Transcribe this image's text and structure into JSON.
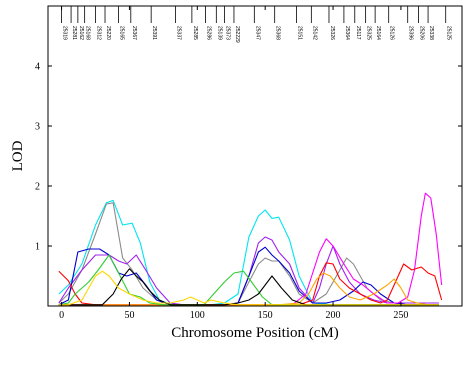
{
  "chart_data": {
    "type": "line",
    "title": "",
    "xlabel": "Chromosome Position (cM)",
    "ylabel": "LOD",
    "xlim": [
      -10,
      295
    ],
    "ylim": [
      0,
      5
    ],
    "xticks": [
      0,
      50,
      100,
      150,
      200,
      250
    ],
    "yticks": [
      1,
      2,
      3,
      4
    ],
    "grid": false,
    "legend": "none",
    "markers": [
      {
        "name": "25319",
        "pos": 0
      },
      {
        "name": "25281",
        "pos": 7
      },
      {
        "name": "25162",
        "pos": 12
      },
      {
        "name": "25168",
        "pos": 17
      },
      {
        "name": "25312",
        "pos": 25
      },
      {
        "name": "25220",
        "pos": 32
      },
      {
        "name": "25165",
        "pos": 42
      },
      {
        "name": "25367",
        "pos": 51
      },
      {
        "name": "25391",
        "pos": 66
      },
      {
        "name": "25337",
        "pos": 84
      },
      {
        "name": "25285",
        "pos": 96
      },
      {
        "name": "25286",
        "pos": 106
      },
      {
        "name": "25139",
        "pos": 114
      },
      {
        "name": "25373",
        "pos": 120
      },
      {
        "name": "252229",
        "pos": 127
      },
      {
        "name": "25347",
        "pos": 142
      },
      {
        "name": "25368",
        "pos": 157
      },
      {
        "name": "25151",
        "pos": 173
      },
      {
        "name": "25142",
        "pos": 184
      },
      {
        "name": "25326",
        "pos": 197
      },
      {
        "name": "25364",
        "pos": 208
      },
      {
        "name": "25117",
        "pos": 216
      },
      {
        "name": "25325",
        "pos": 224
      },
      {
        "name": "25164",
        "pos": 231
      },
      {
        "name": "25126",
        "pos": 241
      },
      {
        "name": "25396",
        "pos": 255
      },
      {
        "name": "25206",
        "pos": 263
      },
      {
        "name": "25338",
        "pos": 270
      },
      {
        "name": "25125",
        "pos": 283
      }
    ],
    "series": [
      {
        "color": "#00e5ee",
        "x": [
          -2,
          5,
          15,
          25,
          33,
          38,
          45,
          52,
          58,
          65,
          72,
          80,
          90,
          100,
          110,
          120,
          130,
          138,
          145,
          150,
          155,
          160,
          168,
          175,
          185,
          200,
          220,
          240,
          260,
          278
        ],
        "y": [
          0.2,
          0.35,
          0.7,
          1.35,
          1.72,
          1.76,
          1.35,
          1.38,
          1.05,
          0.4,
          0.1,
          0.03,
          0.02,
          0.02,
          0.02,
          0.05,
          0.2,
          1.15,
          1.5,
          1.6,
          1.46,
          1.48,
          1.1,
          0.5,
          0.05,
          0.02,
          0.02,
          0.02,
          0.02,
          0.02
        ]
      },
      {
        "color": "#8b8b8b",
        "x": [
          -2,
          5,
          15,
          25,
          33,
          38,
          45,
          52,
          60,
          70,
          80,
          90,
          100,
          110,
          120,
          130,
          138,
          145,
          150,
          155,
          160,
          168,
          175,
          185,
          195,
          205,
          210,
          215,
          225,
          235,
          245,
          255,
          265,
          278
        ],
        "y": [
          0.05,
          0.2,
          0.6,
          1.2,
          1.7,
          1.72,
          0.8,
          0.6,
          0.3,
          0.1,
          0.02,
          0.02,
          0.02,
          0.02,
          0.02,
          0.05,
          0.4,
          0.7,
          0.8,
          0.75,
          0.75,
          0.5,
          0.2,
          0.05,
          0.2,
          0.6,
          0.8,
          0.7,
          0.3,
          0.1,
          0.05,
          0.02,
          0.02,
          0.02
        ]
      },
      {
        "color": "#a020f0",
        "x": [
          -2,
          5,
          15,
          25,
          35,
          42,
          48,
          55,
          62,
          70,
          80,
          90,
          100,
          110,
          120,
          130,
          138,
          145,
          150,
          155,
          160,
          168,
          175,
          185,
          190,
          195,
          200,
          205,
          212,
          220,
          230,
          240,
          250,
          260,
          270,
          278
        ],
        "y": [
          0.05,
          0.3,
          0.6,
          0.85,
          0.85,
          0.75,
          0.7,
          0.85,
          0.6,
          0.3,
          0.05,
          0.02,
          0.02,
          0.02,
          0.02,
          0.05,
          0.5,
          1.05,
          1.15,
          1.1,
          0.9,
          0.7,
          0.3,
          0.05,
          0.3,
          0.7,
          1.0,
          0.7,
          0.4,
          0.2,
          0.1,
          0.05,
          0.05,
          0.05,
          0.05,
          0.05
        ]
      },
      {
        "color": "#0000cd",
        "x": [
          -2,
          5,
          12,
          20,
          28,
          35,
          42,
          48,
          55,
          62,
          70,
          80,
          90,
          100,
          110,
          120,
          130,
          138,
          145,
          150,
          155,
          160,
          168,
          175,
          185,
          195,
          205,
          215,
          222,
          228,
          235,
          245,
          255,
          270,
          278
        ],
        "y": [
          0.02,
          0.1,
          0.9,
          0.95,
          0.95,
          0.85,
          0.55,
          0.5,
          0.55,
          0.35,
          0.1,
          0.02,
          0.02,
          0.02,
          0.02,
          0.02,
          0.05,
          0.5,
          0.9,
          0.98,
          0.85,
          0.75,
          0.55,
          0.25,
          0.05,
          0.05,
          0.1,
          0.25,
          0.4,
          0.35,
          0.2,
          0.05,
          0.02,
          0.02,
          0.02
        ]
      },
      {
        "color": "#ff00ff",
        "x": [
          -2,
          10,
          20,
          30,
          40,
          50,
          60,
          70,
          80,
          90,
          100,
          110,
          120,
          130,
          140,
          150,
          160,
          170,
          180,
          185,
          190,
          195,
          200,
          208,
          215,
          222,
          230,
          240,
          248,
          255,
          260,
          265,
          268,
          272,
          276,
          280
        ],
        "y": [
          0.02,
          0.02,
          0.02,
          0.02,
          0.02,
          0.02,
          0.02,
          0.02,
          0.02,
          0.02,
          0.02,
          0.02,
          0.02,
          0.02,
          0.02,
          0.02,
          0.02,
          0.02,
          0.2,
          0.55,
          0.9,
          1.12,
          1.0,
          0.7,
          0.45,
          0.35,
          0.2,
          0.05,
          0.05,
          0.15,
          0.6,
          1.5,
          1.88,
          1.8,
          1.2,
          0.35
        ]
      },
      {
        "color": "#ff0000",
        "x": [
          -2,
          5,
          10,
          15,
          25,
          35,
          45,
          55,
          65,
          80,
          100,
          120,
          140,
          160,
          175,
          185,
          190,
          195,
          200,
          205,
          212,
          220,
          228,
          235,
          240,
          245,
          252,
          258,
          265,
          270,
          275,
          280
        ],
        "y": [
          0.58,
          0.42,
          0.2,
          0.05,
          0.02,
          0.02,
          0.02,
          0.02,
          0.02,
          0.02,
          0.02,
          0.02,
          0.02,
          0.02,
          0.02,
          0.1,
          0.5,
          0.72,
          0.7,
          0.45,
          0.3,
          0.2,
          0.1,
          0.05,
          0.1,
          0.35,
          0.7,
          0.6,
          0.65,
          0.55,
          0.5,
          0.1
        ]
      },
      {
        "color": "#ffa500",
        "x": [
          -2,
          20,
          40,
          60,
          80,
          100,
          120,
          140,
          160,
          175,
          182,
          188,
          193,
          198,
          205,
          212,
          220,
          230,
          240,
          245,
          250,
          255,
          262,
          270,
          278
        ],
        "y": [
          0.02,
          0.02,
          0.02,
          0.02,
          0.02,
          0.02,
          0.02,
          0.02,
          0.02,
          0.05,
          0.2,
          0.45,
          0.55,
          0.5,
          0.3,
          0.15,
          0.1,
          0.2,
          0.35,
          0.45,
          0.3,
          0.1,
          0.05,
          0.02,
          0.02
        ]
      },
      {
        "color": "#32cd32",
        "x": [
          -2,
          5,
          10,
          20,
          27,
          35,
          42,
          50,
          58,
          65,
          75,
          85,
          95,
          105,
          112,
          120,
          127,
          134,
          140,
          148,
          155,
          165,
          180,
          200,
          220,
          240,
          260,
          278
        ],
        "y": [
          0.02,
          0.05,
          0.2,
          0.4,
          0.6,
          0.85,
          0.55,
          0.2,
          0.15,
          0.05,
          0.02,
          0.02,
          0.02,
          0.02,
          0.2,
          0.4,
          0.55,
          0.58,
          0.4,
          0.15,
          0.02,
          0.02,
          0.02,
          0.02,
          0.02,
          0.02,
          0.02,
          0.02
        ]
      },
      {
        "color": "#000000",
        "x": [
          -2,
          10,
          20,
          30,
          38,
          44,
          50,
          55,
          60,
          65,
          72,
          80,
          90,
          100,
          110,
          120,
          130,
          138,
          145,
          150,
          155,
          162,
          170,
          180,
          200,
          220,
          240,
          260,
          278
        ],
        "y": [
          0.02,
          0.02,
          0.02,
          0.02,
          0.2,
          0.45,
          0.62,
          0.5,
          0.4,
          0.25,
          0.1,
          0.02,
          0.02,
          0.02,
          0.02,
          0.02,
          0.05,
          0.1,
          0.2,
          0.35,
          0.5,
          0.3,
          0.1,
          0.02,
          0.02,
          0.02,
          0.02,
          0.02,
          0.02
        ]
      },
      {
        "color": "#ffd700",
        "x": [
          -2,
          5,
          15,
          25,
          30,
          35,
          42,
          50,
          60,
          70,
          80,
          90,
          95,
          100,
          105,
          110,
          120,
          130,
          140,
          150,
          160,
          170,
          180,
          200,
          220,
          240,
          260,
          278
        ],
        "y": [
          0.02,
          0.02,
          0.1,
          0.5,
          0.58,
          0.5,
          0.3,
          0.2,
          0.1,
          0.05,
          0.05,
          0.1,
          0.15,
          0.1,
          0.05,
          0.1,
          0.05,
          0.02,
          0.02,
          0.02,
          0.02,
          0.02,
          0.02,
          0.02,
          0.02,
          0.02,
          0.02,
          0.02
        ]
      }
    ]
  }
}
